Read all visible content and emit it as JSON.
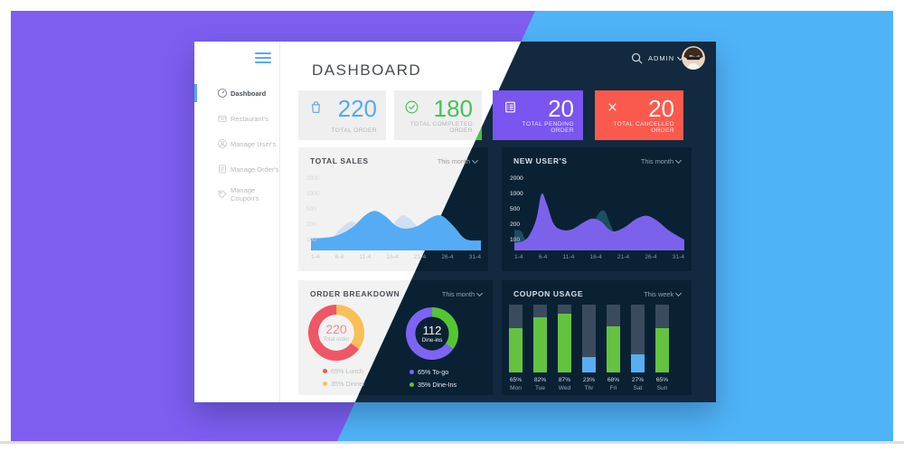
{
  "background": {
    "left_color": "#7d5ef1",
    "right_color": "#4fb3f8",
    "frame_color": "#ffffff"
  },
  "window": {
    "header": {
      "title": "DASHBOARD",
      "admin_label": "ADMIN"
    },
    "sidebar": {
      "items": [
        {
          "label": "Dashboard",
          "icon": "dashboard-icon",
          "active": true
        },
        {
          "label": "Restaurant's",
          "icon": "restaurant-icon",
          "active": false
        },
        {
          "label": "Manage User's",
          "icon": "users-icon",
          "active": false
        },
        {
          "label": "Manage Order's",
          "icon": "orders-icon",
          "active": false
        },
        {
          "label": "Manage Coupon's",
          "icon": "coupons-icon",
          "active": false
        }
      ]
    },
    "stat_cards": [
      {
        "value": "220",
        "label": "TOTAL ORDER",
        "icon": "bag-icon",
        "accent": "#57a8f2"
      },
      {
        "value": "180",
        "label": "TOTAL COMPLETED ORDER",
        "icon": "check-circle-icon",
        "accent": "#44c25b"
      },
      {
        "value": "20",
        "label": "TOTAL PENDING ORDER",
        "icon": "pending-icon",
        "accent": "#7a55f0"
      },
      {
        "value": "20",
        "label": "TOTAL CANCELLED ORDER",
        "icon": "cancel-icon",
        "accent": "#fa5a4d"
      }
    ]
  },
  "chart_data": [
    {
      "type": "area",
      "title": "TOTAL SALES",
      "range_label": "This month",
      "legend_position": "none",
      "grid": false,
      "y_ticks": [
        "2000",
        "1000",
        "500",
        "200",
        "100"
      ],
      "x_ticks": [
        "1-4",
        "6-4",
        "11-4",
        "16-4",
        "21-4",
        "26-4",
        "31-4"
      ],
      "series": [
        {
          "name": "previous",
          "color": "#c3d9ef",
          "opacity": 0.7,
          "points": [
            [
              0,
              9
            ],
            [
              10,
              13
            ],
            [
              17,
              30
            ],
            [
              24,
              41
            ],
            [
              31,
              30
            ],
            [
              39,
              17
            ],
            [
              47,
              33
            ],
            [
              54,
              50
            ],
            [
              61,
              38
            ],
            [
              69,
              15
            ],
            [
              78,
              7
            ],
            [
              100,
              5
            ]
          ]
        },
        {
          "name": "sales",
          "color": "#55abf4",
          "opacity": 1,
          "points": [
            [
              0,
              17
            ],
            [
              8,
              18
            ],
            [
              15,
              21
            ],
            [
              24,
              32
            ],
            [
              32,
              50
            ],
            [
              38,
              56
            ],
            [
              44,
              48
            ],
            [
              50,
              35
            ],
            [
              56,
              31
            ],
            [
              63,
              35
            ],
            [
              71,
              47
            ],
            [
              77,
              49
            ],
            [
              84,
              34
            ],
            [
              91,
              16
            ],
            [
              100,
              14
            ]
          ]
        }
      ]
    },
    {
      "type": "area",
      "title": "NEW USER'S",
      "range_label": "This month",
      "legend_position": "none",
      "grid": false,
      "y_ticks": [
        "2000",
        "1000",
        "500",
        "200",
        "100"
      ],
      "x_ticks": [
        "1-4",
        "6-4",
        "11-4",
        "16-4",
        "21-4",
        "26-4",
        "31-4"
      ],
      "series": [
        {
          "name": "previous",
          "color": "#1d4f63",
          "opacity": 1,
          "points": [
            [
              0,
              29
            ],
            [
              4,
              27
            ],
            [
              7,
              14
            ],
            [
              15,
              7
            ],
            [
              35,
              7
            ],
            [
              44,
              26
            ],
            [
              49,
              50
            ],
            [
              53,
              56
            ],
            [
              57,
              34
            ],
            [
              62,
              12
            ],
            [
              72,
              6
            ],
            [
              100,
              5
            ]
          ]
        },
        {
          "name": "new users",
          "color": "#7c62ea",
          "opacity": 1,
          "points": [
            [
              0,
              11
            ],
            [
              5,
              13
            ],
            [
              9,
              22
            ],
            [
              13,
              45
            ],
            [
              16,
              80
            ],
            [
              19,
              66
            ],
            [
              23,
              38
            ],
            [
              28,
              29
            ],
            [
              34,
              30
            ],
            [
              41,
              40
            ],
            [
              46,
              45
            ],
            [
              51,
              41
            ],
            [
              55,
              31
            ],
            [
              59,
              27
            ],
            [
              65,
              33
            ],
            [
              72,
              45
            ],
            [
              78,
              49
            ],
            [
              84,
              42
            ],
            [
              91,
              28
            ],
            [
              100,
              15
            ]
          ]
        }
      ]
    },
    {
      "type": "pie",
      "title": "ORDER BREAKDOWN",
      "range_label": "This month",
      "donuts": [
        {
          "center_value": "220",
          "center_label": "Total order",
          "center_value_color": "#ec8b95",
          "segments": [
            {
              "label": "65% Lunch",
              "pct": 65,
              "color": "#ef5666"
            },
            {
              "label": "35% Dinner",
              "pct": 35,
              "color": "#fbbf57"
            }
          ]
        },
        {
          "center_value": "112",
          "center_label": "Dine-ins",
          "center_value_color": "#d9e7de",
          "segments": [
            {
              "label": "65% To-go",
              "pct": 65,
              "color": "#7d64f2"
            },
            {
              "label": "35% Dine-Ins",
              "pct": 35,
              "color": "#55c632"
            }
          ]
        }
      ]
    },
    {
      "type": "bar",
      "title": "COUPON USAGE",
      "range_label": "This week",
      "ylim": [
        0,
        100
      ],
      "track_color": "#3a4b5e",
      "categories": [
        "Mon",
        "Tue",
        "Wed",
        "Thr",
        "Fri",
        "Sat",
        "Sun"
      ],
      "values": [
        65,
        82,
        87,
        23,
        68,
        27,
        65
      ],
      "bar_colors": [
        "#63c341",
        "#63c341",
        "#63c341",
        "#58aef2",
        "#63c341",
        "#58aef2",
        "#63c341"
      ]
    }
  ]
}
